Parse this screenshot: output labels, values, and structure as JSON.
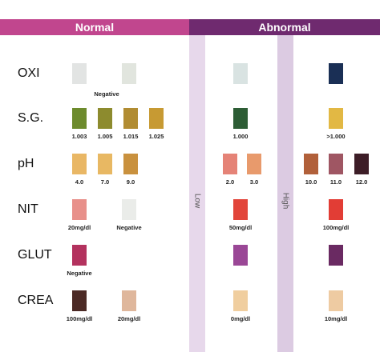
{
  "header": {
    "normal": "Normal",
    "abnormal": "Abnormal"
  },
  "bands": {
    "low": "Low",
    "high": "High"
  },
  "rows": [
    {
      "name": "OXI",
      "normal": [
        {
          "color": "#e2e4e3",
          "label": ""
        },
        {
          "color": "#e1e5de",
          "label": ""
        }
      ],
      "normal_caption": "Negative",
      "low": {
        "color": "#d9e3e2",
        "label": ""
      },
      "high": {
        "color": "#1a2f55",
        "label": ""
      }
    },
    {
      "name": "S.G.",
      "normal": [
        {
          "color": "#6d8b2d",
          "label": "1.003"
        },
        {
          "color": "#8d8b2e",
          "label": "1.005"
        },
        {
          "color": "#b18c32",
          "label": "1.015"
        },
        {
          "color": "#c79a33",
          "label": "1.025"
        }
      ],
      "low": {
        "color": "#2d5d35",
        "label": "1.000"
      },
      "high": {
        "color": "#e2b844",
        "label": ">1.000"
      }
    },
    {
      "name": "pH",
      "normal": [
        {
          "color": "#e9b765",
          "label": "4.0"
        },
        {
          "color": "#e8b863",
          "label": "7.0"
        },
        {
          "color": "#c9913e",
          "label": "9.0"
        }
      ],
      "low": [
        {
          "color": "#e58377",
          "label": "2.0"
        },
        {
          "color": "#e89a6c",
          "label": "3.0"
        }
      ],
      "high": [
        {
          "color": "#b1603a",
          "label": "10.0"
        },
        {
          "color": "#9f5663",
          "label": "11.0"
        },
        {
          "color": "#3d1d27",
          "label": "12.0"
        }
      ]
    },
    {
      "name": "NIT",
      "normal": [
        {
          "color": "#e8908a",
          "label": "20mg/dl"
        },
        {
          "color": "#eaece9",
          "label": "Negative"
        }
      ],
      "low": {
        "color": "#e2453a",
        "label": "50mg/dl"
      },
      "high": {
        "color": "#e23d35",
        "label": "100mg/dl"
      }
    },
    {
      "name": "GLUT",
      "normal": [
        {
          "color": "#b3325e",
          "label": "Negative"
        }
      ],
      "low": {
        "color": "#9a4796",
        "label": ""
      },
      "high": {
        "color": "#6a2a62",
        "label": ""
      }
    },
    {
      "name": "CREA",
      "normal": [
        {
          "color": "#4c2a25",
          "label": "100mg/dl"
        },
        {
          "color": "#dfb79c",
          "label": "20mg/dl"
        }
      ],
      "low": {
        "color": "#f0ce9f",
        "label": "0mg/dl"
      },
      "high": {
        "color": "#eecba2",
        "label": "10mg/dl"
      }
    }
  ]
}
